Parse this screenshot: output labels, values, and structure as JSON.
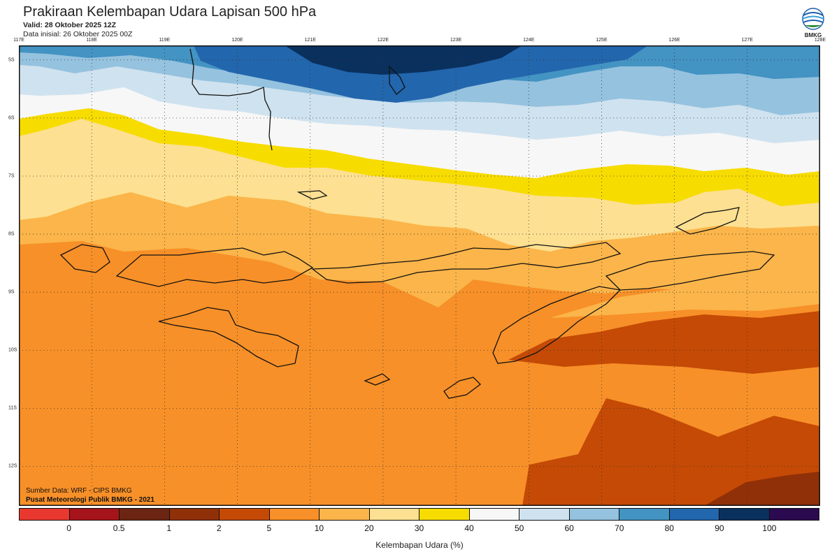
{
  "header": {
    "title": "Prakiraan Kelembapan Udara Lapisan 500 hPa",
    "valid": "Valid: 28 Oktober 2025 12Z",
    "init": "Data inisial: 26 Oktober 2025 00Z",
    "logo_text": "BMKG"
  },
  "axes": {
    "lon_labels": [
      "117E",
      "118E",
      "119E",
      "120E",
      "121E",
      "122E",
      "123E",
      "124E",
      "125E",
      "126E",
      "127E",
      "128E"
    ],
    "lat_labels": [
      "5S",
      "6S",
      "7S",
      "8S",
      "9S",
      "10S",
      "11S",
      "12S"
    ]
  },
  "credits": {
    "source": "Sumber Data: WRF - CIPS BMKG",
    "org": "Pusat Meteorologi Publik BMKG - 2021"
  },
  "colorbar": {
    "colors": [
      "#e8382f",
      "#a6141b",
      "#6b2512",
      "#8f3008",
      "#c54a05",
      "#f79028",
      "#fbb54a",
      "#fde091",
      "#f7dc00",
      "#f7f7f7",
      "#cfe2ef",
      "#95c2de",
      "#4393c3",
      "#2266ad",
      "#0a305e",
      "#2b0a4f"
    ],
    "ticks": [
      "0",
      "0.5",
      "1",
      "2",
      "5",
      "10",
      "20",
      "30",
      "40",
      "50",
      "60",
      "70",
      "80",
      "90",
      "100"
    ],
    "label": "Kelembapan Udara (%)"
  }
}
